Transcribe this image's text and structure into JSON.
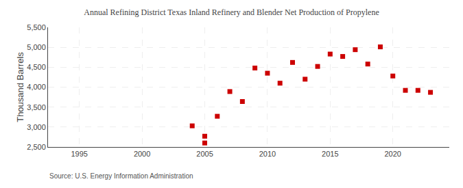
{
  "chart_data": {
    "type": "scatter",
    "title": "Annual Refining District Texas Inland Refinery and Blender Net Production of Propylene",
    "ylabel": "Thousand Barrels",
    "annotations": [
      "Source: U.S. Energy Information Administration"
    ],
    "x": [
      2004,
      2005,
      2005,
      2006,
      2007,
      2008,
      2009,
      2010,
      2011,
      2012,
      2013,
      2014,
      2015,
      2016,
      2017,
      2018,
      2019,
      2020,
      2021,
      2022,
      2023
    ],
    "values": [
      3030,
      2600,
      2770,
      3270,
      3890,
      3640,
      4480,
      4350,
      4100,
      4620,
      4200,
      4520,
      4830,
      4770,
      4940,
      4580,
      5010,
      4280,
      3920,
      3920,
      3870
    ],
    "color": "#cc0000",
    "marker": "square",
    "xlim": [
      1992.5,
      2024.5
    ],
    "xticks": [
      1995,
      2000,
      2005,
      2010,
      2015,
      2020
    ],
    "ylim": [
      2500,
      5500
    ],
    "yticks": [
      {
        "value": 2500,
        "label": "2,500"
      },
      {
        "value": 3000,
        "label": "3,000"
      },
      {
        "value": 3500,
        "label": "3,500"
      },
      {
        "value": 4000,
        "label": "4,000"
      },
      {
        "value": 4500,
        "label": "4,500"
      },
      {
        "value": 5000,
        "label": "5,000"
      },
      {
        "value": 5500,
        "label": "5,500"
      }
    ],
    "grid": true
  }
}
